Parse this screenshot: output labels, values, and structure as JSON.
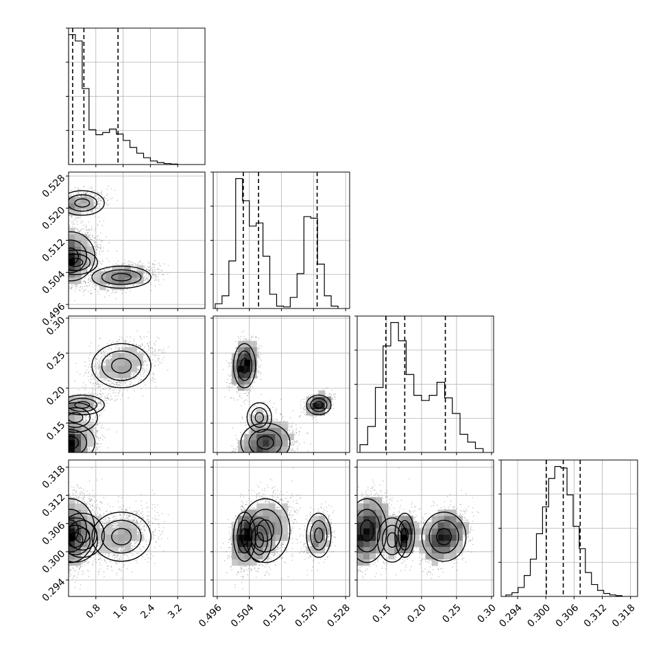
{
  "chart_data": {
    "type": "corner",
    "grid": true,
    "params": [
      {
        "range": [
          0,
          4.0
        ],
        "ticks": [
          0.8,
          1.6,
          2.4,
          3.2
        ],
        "tick_labels": [
          "0.8",
          "1.6",
          "2.4",
          "3.2"
        ],
        "quantiles": [
          0.12,
          0.45,
          1.45
        ]
      },
      {
        "range": [
          0.495,
          0.529
        ],
        "ticks": [
          0.496,
          0.504,
          0.512,
          0.52,
          0.528
        ],
        "tick_labels": [
          "0.496",
          "0.504",
          "0.512",
          "0.520",
          "0.528"
        ],
        "quantiles": [
          0.5025,
          0.5063,
          0.5209
        ]
      },
      {
        "range": [
          0.108,
          0.303
        ],
        "ticks": [
          0.15,
          0.2,
          0.25,
          0.3
        ],
        "tick_labels": [
          "0.15",
          "0.20",
          "0.25",
          "0.30"
        ],
        "quantiles": [
          0.149,
          0.176,
          0.234
        ]
      },
      {
        "range": [
          0.2905,
          0.3195
        ],
        "ticks": [
          0.294,
          0.3,
          0.306,
          0.312,
          0.318
        ],
        "tick_labels": [
          "0.294",
          "0.300",
          "0.306",
          "0.312",
          "0.318"
        ],
        "quantiles": [
          0.3001,
          0.3037,
          0.3073
        ]
      }
    ],
    "histograms": [
      {
        "param": 0,
        "bin_edges": [
          0,
          0.2,
          0.4,
          0.6,
          0.8,
          1.0,
          1.2,
          1.4,
          1.6,
          1.8,
          2.0,
          2.2,
          2.4,
          2.6,
          2.8,
          3.0,
          3.2
        ],
        "counts": [
          915,
          870,
          535,
          245,
          210,
          225,
          250,
          215,
          170,
          120,
          80,
          48,
          25,
          14,
          7,
          3
        ]
      },
      {
        "param": 1,
        "bin_edges": [
          0.4955,
          0.4972,
          0.4989,
          0.5006,
          0.5023,
          0.504,
          0.5057,
          0.5074,
          0.5091,
          0.5108,
          0.5125,
          0.5142,
          0.5159,
          0.5176,
          0.5193,
          0.521,
          0.5227,
          0.5244,
          0.5261
        ],
        "counts": [
          30,
          80,
          300,
          820,
          680,
          520,
          540,
          330,
          90,
          15,
          10,
          70,
          220,
          580,
          570,
          280,
          80,
          15
        ]
      },
      {
        "param": 2,
        "bin_edges": [
          0.112,
          0.123,
          0.134,
          0.145,
          0.156,
          0.167,
          0.178,
          0.189,
          0.2,
          0.211,
          0.222,
          0.233,
          0.244,
          0.255,
          0.266,
          0.277,
          0.288
        ],
        "counts": [
          30,
          100,
          250,
          410,
          500,
          430,
          300,
          220,
          200,
          220,
          270,
          210,
          150,
          70,
          40,
          15
        ]
      },
      {
        "param": 3,
        "bin_edges": [
          0.2915,
          0.2928,
          0.2941,
          0.2954,
          0.2967,
          0.298,
          0.2993,
          0.3006,
          0.3019,
          0.3032,
          0.3045,
          0.3058,
          0.3071,
          0.3084,
          0.3097,
          0.311,
          0.3123,
          0.3136,
          0.3149,
          0.3162
        ],
        "counts": [
          10,
          25,
          60,
          140,
          250,
          420,
          600,
          790,
          870,
          860,
          680,
          470,
          320,
          160,
          80,
          40,
          20,
          10,
          5
        ]
      }
    ],
    "modes": [
      [
        [
          0.05,
          0.508,
          0.122,
          0.3045
        ],
        0.45,
        0.14,
        0.12,
        0.05,
        0.02
      ],
      [
        [
          0.4,
          0.5213,
          0.176,
          0.3035
        ],
        0.16,
        0.12,
        0.06,
        0.06,
        0.02
      ],
      [
        [
          1.55,
          0.5028,
          0.232,
          0.3032
        ],
        0.35,
        0.12,
        0.15,
        0.04,
        0.02
      ],
      [
        [
          0.2,
          0.5065,
          0.158,
          0.3025
        ],
        0.18,
        0.12,
        0.09,
        0.06,
        0.02
      ]
    ]
  }
}
